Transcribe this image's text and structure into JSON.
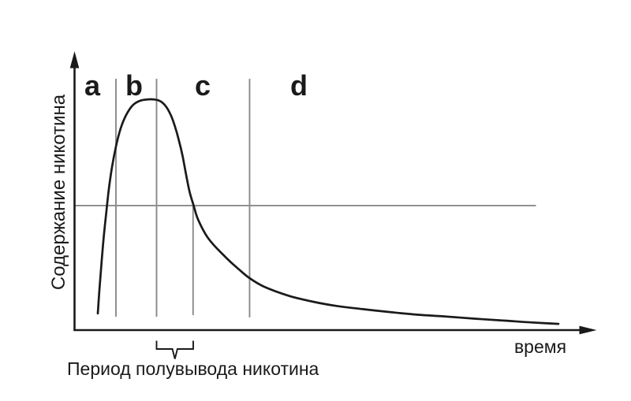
{
  "figure": {
    "background_color": "#ffffff",
    "ink_color": "#1a1a1a",
    "guide_color": "#8a8a8a"
  },
  "labels": {
    "y_axis": "Содержание никотина",
    "x_axis": "время",
    "caption": "Период полувывода никотина",
    "region_a": "a",
    "region_b": "b",
    "region_c": "c",
    "region_d": "d"
  },
  "chart_data": {
    "type": "line",
    "title": "",
    "xlabel": "время",
    "ylabel": "Содержание никотина",
    "axis_numbers_shown": false,
    "x_units": "relative time, 0-100 (no numeric ticks shown)",
    "y_units": "nicotine content relative to peak, 0-1 (no numeric ticks shown)",
    "xlim": [
      0,
      100
    ],
    "ylim": [
      0,
      1.2
    ],
    "grid": false,
    "legend": false,
    "series": [
      {
        "name": "nicotine-content-curve",
        "points": [
          [
            4.46,
            0.072
          ],
          [
            4.83,
            0.195
          ],
          [
            5.21,
            0.304
          ],
          [
            5.59,
            0.403
          ],
          [
            6.04,
            0.502
          ],
          [
            6.57,
            0.612
          ],
          [
            7.18,
            0.707
          ],
          [
            7.93,
            0.796
          ],
          [
            8.84,
            0.875
          ],
          [
            9.89,
            0.933
          ],
          [
            11.1,
            0.974
          ],
          [
            12.46,
            0.994
          ],
          [
            13.82,
            1.0
          ],
          [
            15.33,
            1.0
          ],
          [
            16.54,
            0.991
          ],
          [
            17.6,
            0.967
          ],
          [
            18.5,
            0.929
          ],
          [
            19.26,
            0.881
          ],
          [
            20.02,
            0.82
          ],
          [
            20.69,
            0.755
          ],
          [
            21.37,
            0.673
          ],
          [
            22.05,
            0.598
          ],
          [
            22.81,
            0.54
          ],
          [
            23.49,
            0.489
          ],
          [
            24.4,
            0.444
          ],
          [
            25.45,
            0.403
          ],
          [
            26.66,
            0.369
          ],
          [
            28.02,
            0.337
          ],
          [
            29.08,
            0.313
          ],
          [
            30.29,
            0.287
          ],
          [
            31.5,
            0.263
          ],
          [
            33.53,
            0.225
          ],
          [
            36.33,
            0.188
          ],
          [
            41.01,
            0.149
          ],
          [
            45.69,
            0.123
          ],
          [
            50.38,
            0.104
          ],
          [
            55.21,
            0.091
          ],
          [
            60.05,
            0.079
          ],
          [
            65.03,
            0.068
          ],
          [
            70.32,
            0.06
          ],
          [
            76.36,
            0.05
          ],
          [
            82.4,
            0.041
          ],
          [
            87.69,
            0.033
          ],
          [
            92.67,
            0.027
          ]
        ]
      }
    ],
    "guide_lines": {
      "vertical": [
        {
          "x": 7.93,
          "y_from": 0.058,
          "y_to": 1.09
        },
        {
          "x": 15.71,
          "y_from": 0.058,
          "y_to": 1.09
        },
        {
          "x": 22.7,
          "y_from": 0.065,
          "y_to": 0.54
        },
        {
          "x": 33.53,
          "y_from": 0.055,
          "y_to": 1.09
        }
      ],
      "horizontal": [
        {
          "y": 0.54,
          "x_from": 0,
          "x_to": 88.37,
          "meaning": "half of peak concentration"
        }
      ]
    },
    "region_labels": [
      {
        "label": "a",
        "x": 3.4
      },
      {
        "label": "b",
        "x": 11.4
      },
      {
        "label": "c",
        "x": 24.55
      },
      {
        "label": "d",
        "x": 42.97
      }
    ],
    "region_boundaries_x": [
      7.93,
      15.71,
      22.7,
      33.53
    ],
    "half_life_bracket": {
      "x_start": 15.71,
      "x_end": 22.73,
      "label": "Период полувывода никотина"
    }
  }
}
